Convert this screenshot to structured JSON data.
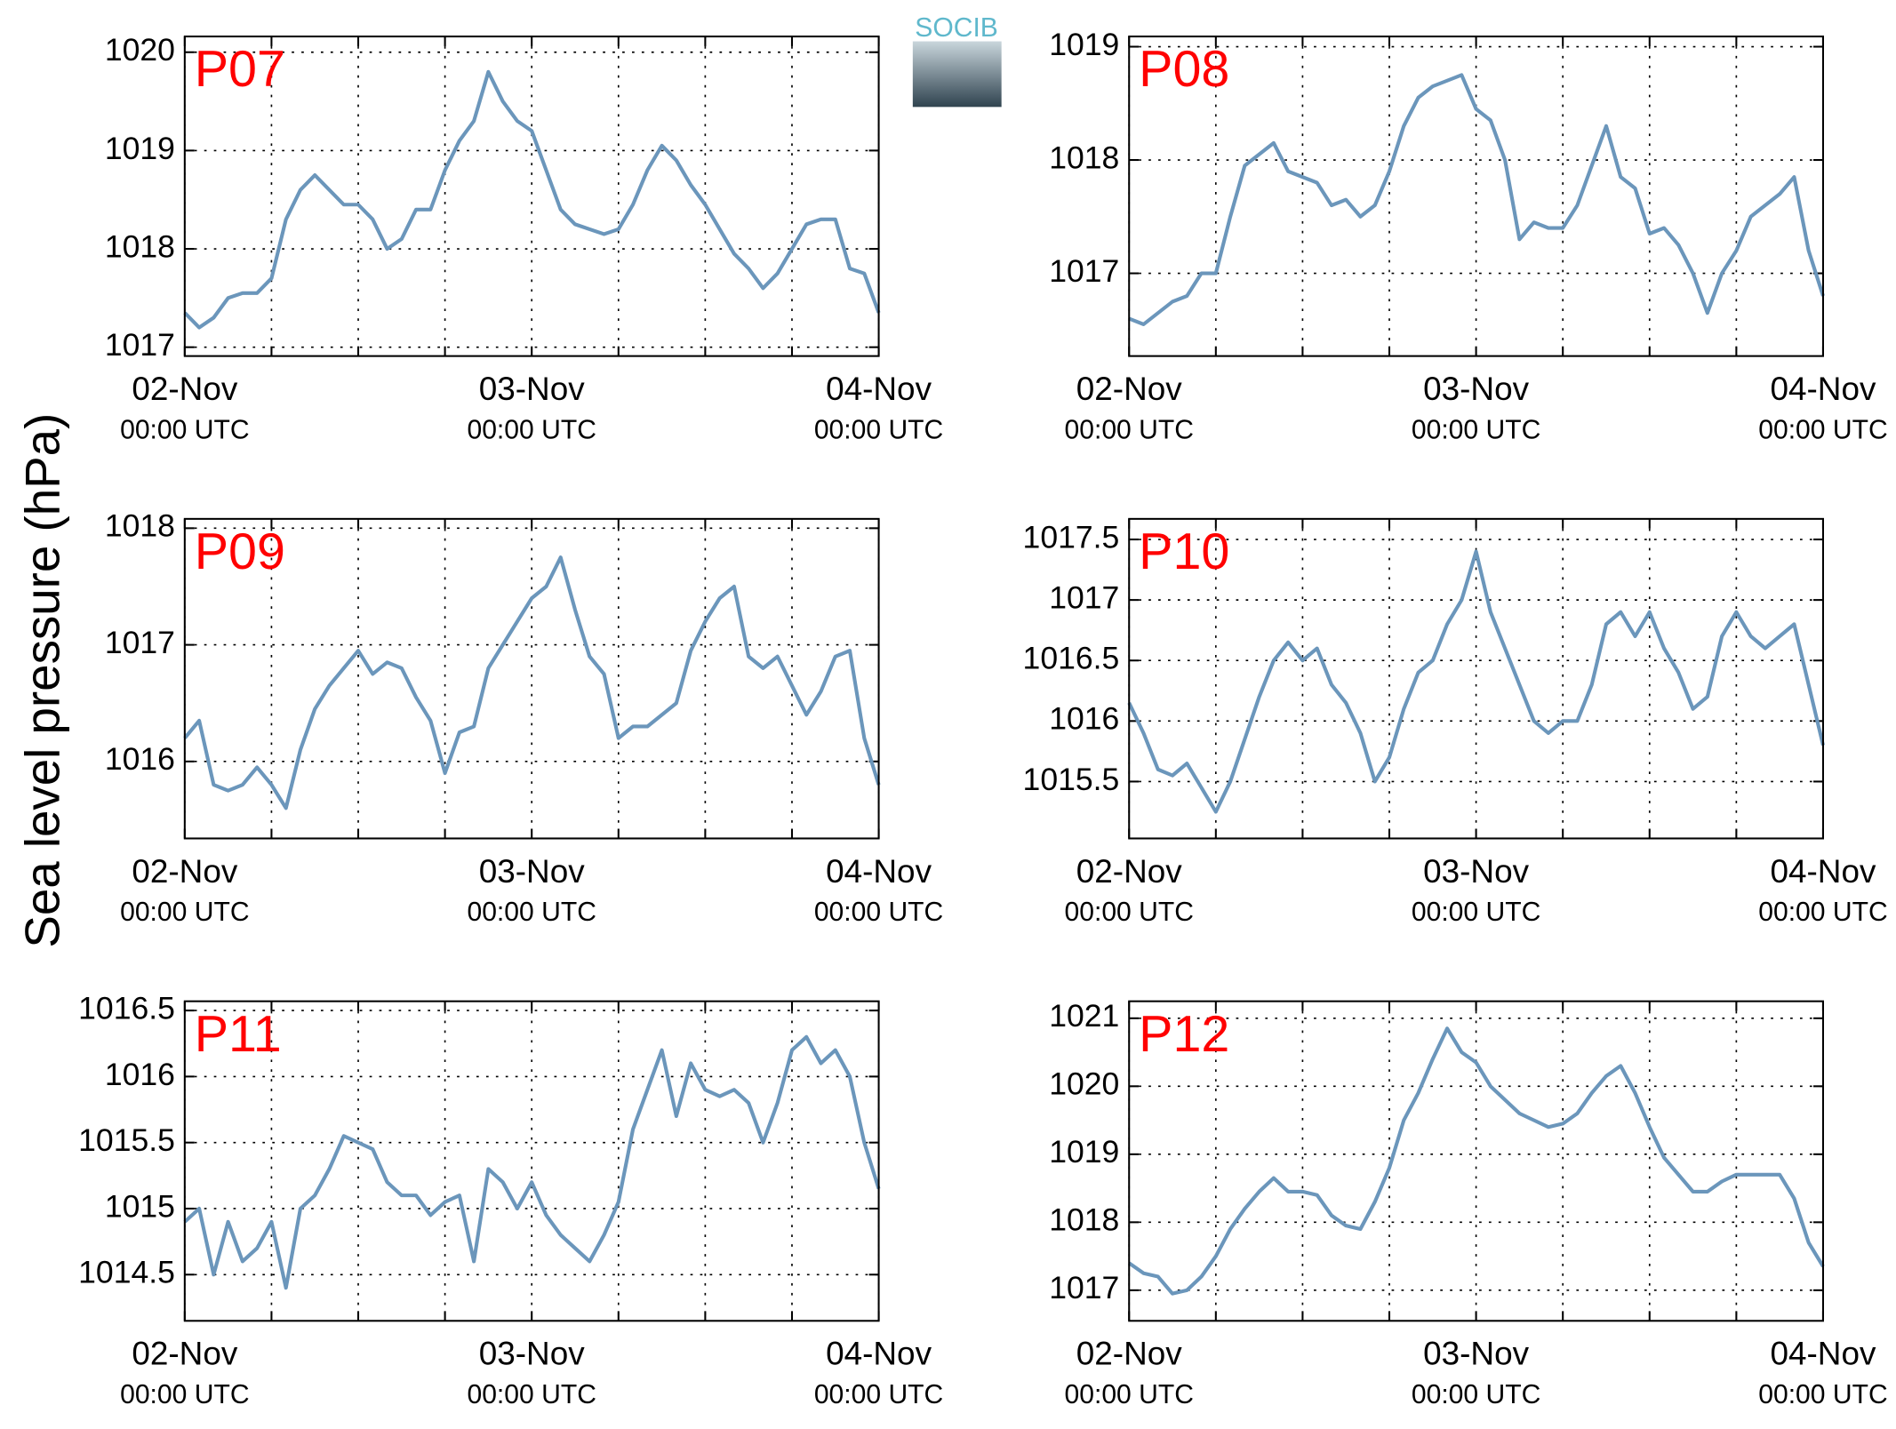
{
  "ylabel": "Sea level pressure (hPa)",
  "logo": "SOCIB",
  "chart_data": [
    {
      "type": "line",
      "title": "P07",
      "color": "#6b96bb",
      "ylim": [
        1016.91,
        1020.16
      ],
      "yticks": [
        1017,
        1018,
        1019,
        1020
      ],
      "grid": true,
      "x": [
        "02-Nov 00:00",
        "02-Nov 01:00",
        "02-Nov 02:00",
        "02-Nov 03:00",
        "02-Nov 04:00",
        "02-Nov 05:00",
        "02-Nov 06:00",
        "02-Nov 07:00",
        "02-Nov 08:00",
        "02-Nov 09:00",
        "02-Nov 10:00",
        "02-Nov 11:00",
        "02-Nov 12:00",
        "02-Nov 13:00",
        "02-Nov 14:00",
        "02-Nov 15:00",
        "02-Nov 16:00",
        "02-Nov 17:00",
        "02-Nov 18:00",
        "02-Nov 19:00",
        "02-Nov 20:00",
        "02-Nov 21:00",
        "02-Nov 22:00",
        "02-Nov 23:00",
        "03-Nov 00:00",
        "03-Nov 01:00",
        "03-Nov 02:00",
        "03-Nov 03:00",
        "03-Nov 04:00",
        "03-Nov 05:00",
        "03-Nov 06:00",
        "03-Nov 07:00",
        "03-Nov 08:00",
        "03-Nov 09:00",
        "03-Nov 10:00",
        "03-Nov 11:00",
        "03-Nov 12:00",
        "03-Nov 13:00",
        "03-Nov 14:00",
        "03-Nov 15:00",
        "03-Nov 16:00",
        "03-Nov 17:00",
        "03-Nov 18:00",
        "03-Nov 19:00",
        "03-Nov 20:00",
        "03-Nov 21:00",
        "03-Nov 22:00",
        "03-Nov 23:00",
        "04-Nov 00:00"
      ],
      "values": [
        1017.35,
        1017.2,
        1017.3,
        1017.5,
        1017.55,
        1017.55,
        1017.7,
        1018.3,
        1018.6,
        1018.75,
        1018.6,
        1018.45,
        1018.45,
        1018.3,
        1018.0,
        1018.1,
        1018.4,
        1018.4,
        1018.8,
        1019.1,
        1019.3,
        1019.8,
        1019.5,
        1019.3,
        1019.2,
        1018.8,
        1018.4,
        1018.25,
        1018.2,
        1018.15,
        1018.2,
        1018.45,
        1018.8,
        1019.05,
        1018.9,
        1018.65,
        1018.45,
        1018.2,
        1017.95,
        1017.8,
        1017.6,
        1017.75,
        1018.0,
        1018.25,
        1018.3,
        1018.3,
        1017.8,
        1017.75,
        1017.35
      ],
      "xticks": [
        {
          "value": "02-Nov 00:00",
          "label": [
            "02-Nov",
            "00:00 UTC"
          ]
        },
        {
          "value": "02-Nov 06:00"
        },
        {
          "value": "02-Nov 12:00"
        },
        {
          "value": "02-Nov 18:00"
        },
        {
          "value": "03-Nov 00:00",
          "label": [
            "03-Nov",
            "00:00 UTC"
          ]
        },
        {
          "value": "03-Nov 06:00"
        },
        {
          "value": "03-Nov 12:00"
        },
        {
          "value": "03-Nov 18:00"
        },
        {
          "value": "04-Nov 00:00",
          "label": [
            "04-Nov",
            "00:00 UTC"
          ]
        }
      ]
    },
    {
      "type": "line",
      "title": "P08",
      "color": "#6b96bb",
      "ylim": [
        1016.27,
        1019.09
      ],
      "yticks": [
        1017,
        1018,
        1019
      ],
      "grid": true,
      "x": [
        "02-Nov 00:00",
        "02-Nov 01:00",
        "02-Nov 02:00",
        "02-Nov 03:00",
        "02-Nov 04:00",
        "02-Nov 05:00",
        "02-Nov 06:00",
        "02-Nov 07:00",
        "02-Nov 08:00",
        "02-Nov 09:00",
        "02-Nov 10:00",
        "02-Nov 11:00",
        "02-Nov 12:00",
        "02-Nov 13:00",
        "02-Nov 14:00",
        "02-Nov 15:00",
        "02-Nov 16:00",
        "02-Nov 17:00",
        "02-Nov 18:00",
        "02-Nov 19:00",
        "02-Nov 20:00",
        "02-Nov 21:00",
        "02-Nov 22:00",
        "02-Nov 23:00",
        "03-Nov 00:00",
        "03-Nov 01:00",
        "03-Nov 02:00",
        "03-Nov 03:00",
        "03-Nov 04:00",
        "03-Nov 05:00",
        "03-Nov 06:00",
        "03-Nov 07:00",
        "03-Nov 08:00",
        "03-Nov 09:00",
        "03-Nov 10:00",
        "03-Nov 11:00",
        "03-Nov 12:00",
        "03-Nov 13:00",
        "03-Nov 14:00",
        "03-Nov 15:00",
        "03-Nov 16:00",
        "03-Nov 17:00",
        "03-Nov 18:00",
        "03-Nov 19:00",
        "03-Nov 20:00",
        "03-Nov 21:00",
        "03-Nov 22:00",
        "03-Nov 23:00",
        "04-Nov 00:00"
      ],
      "values": [
        1016.6,
        1016.55,
        1016.65,
        1016.75,
        1016.8,
        1017.0,
        1017.0,
        1017.5,
        1017.95,
        1018.05,
        1018.15,
        1017.9,
        1017.85,
        1017.8,
        1017.6,
        1017.65,
        1017.5,
        1017.6,
        1017.9,
        1018.3,
        1018.55,
        1018.65,
        1018.7,
        1018.75,
        1018.45,
        1018.35,
        1018.0,
        1017.3,
        1017.45,
        1017.4,
        1017.4,
        1017.6,
        1017.95,
        1018.3,
        1017.85,
        1017.75,
        1017.35,
        1017.4,
        1017.25,
        1017.0,
        1016.65,
        1017.0,
        1017.2,
        1017.5,
        1017.6,
        1017.7,
        1017.85,
        1017.2,
        1016.8
      ],
      "xticks": [
        {
          "value": "02-Nov 00:00",
          "label": [
            "02-Nov",
            "00:00 UTC"
          ]
        },
        {
          "value": "02-Nov 06:00"
        },
        {
          "value": "02-Nov 12:00"
        },
        {
          "value": "02-Nov 18:00"
        },
        {
          "value": "03-Nov 00:00",
          "label": [
            "03-Nov",
            "00:00 UTC"
          ]
        },
        {
          "value": "03-Nov 06:00"
        },
        {
          "value": "03-Nov 12:00"
        },
        {
          "value": "03-Nov 18:00"
        },
        {
          "value": "04-Nov 00:00",
          "label": [
            "04-Nov",
            "00:00 UTC"
          ]
        }
      ]
    },
    {
      "type": "line",
      "title": "P09",
      "color": "#6b96bb",
      "ylim": [
        1015.34,
        1018.08
      ],
      "yticks": [
        1016,
        1017,
        1018
      ],
      "grid": true,
      "x": [
        "02-Nov 00:00",
        "02-Nov 01:00",
        "02-Nov 02:00",
        "02-Nov 03:00",
        "02-Nov 04:00",
        "02-Nov 05:00",
        "02-Nov 06:00",
        "02-Nov 07:00",
        "02-Nov 08:00",
        "02-Nov 09:00",
        "02-Nov 10:00",
        "02-Nov 11:00",
        "02-Nov 12:00",
        "02-Nov 13:00",
        "02-Nov 14:00",
        "02-Nov 15:00",
        "02-Nov 16:00",
        "02-Nov 17:00",
        "02-Nov 18:00",
        "02-Nov 19:00",
        "02-Nov 20:00",
        "02-Nov 21:00",
        "02-Nov 22:00",
        "02-Nov 23:00",
        "03-Nov 00:00",
        "03-Nov 01:00",
        "03-Nov 02:00",
        "03-Nov 03:00",
        "03-Nov 04:00",
        "03-Nov 05:00",
        "03-Nov 06:00",
        "03-Nov 07:00",
        "03-Nov 08:00",
        "03-Nov 09:00",
        "03-Nov 10:00",
        "03-Nov 11:00",
        "03-Nov 12:00",
        "03-Nov 13:00",
        "03-Nov 14:00",
        "03-Nov 15:00",
        "03-Nov 16:00",
        "03-Nov 17:00",
        "03-Nov 18:00",
        "03-Nov 19:00",
        "03-Nov 20:00",
        "03-Nov 21:00",
        "03-Nov 22:00",
        "03-Nov 23:00",
        "04-Nov 00:00"
      ],
      "values": [
        1016.2,
        1016.35,
        1015.8,
        1015.75,
        1015.8,
        1015.95,
        1015.8,
        1015.6,
        1016.1,
        1016.45,
        1016.65,
        1016.8,
        1016.95,
        1016.75,
        1016.85,
        1016.8,
        1016.55,
        1016.35,
        1015.9,
        1016.25,
        1016.3,
        1016.8,
        1017.0,
        1017.2,
        1017.4,
        1017.5,
        1017.75,
        1017.3,
        1016.9,
        1016.75,
        1016.2,
        1016.3,
        1016.3,
        1016.4,
        1016.5,
        1016.95,
        1017.2,
        1017.4,
        1017.5,
        1016.9,
        1016.8,
        1016.9,
        1016.65,
        1016.4,
        1016.6,
        1016.9,
        1016.95,
        1016.2,
        1015.8
      ],
      "xticks": [
        {
          "value": "02-Nov 00:00",
          "label": [
            "02-Nov",
            "00:00 UTC"
          ]
        },
        {
          "value": "02-Nov 06:00"
        },
        {
          "value": "02-Nov 12:00"
        },
        {
          "value": "02-Nov 18:00"
        },
        {
          "value": "03-Nov 00:00",
          "label": [
            "03-Nov",
            "00:00 UTC"
          ]
        },
        {
          "value": "03-Nov 06:00"
        },
        {
          "value": "03-Nov 12:00"
        },
        {
          "value": "03-Nov 18:00"
        },
        {
          "value": "04-Nov 00:00",
          "label": [
            "04-Nov",
            "00:00 UTC"
          ]
        }
      ]
    },
    {
      "type": "line",
      "title": "P10",
      "color": "#6b96bb",
      "ylim": [
        1015.03,
        1017.67
      ],
      "yticks": [
        1015.5,
        1016,
        1016.5,
        1017,
        1017.5
      ],
      "grid": true,
      "x": [
        "02-Nov 00:00",
        "02-Nov 01:00",
        "02-Nov 02:00",
        "02-Nov 03:00",
        "02-Nov 04:00",
        "02-Nov 05:00",
        "02-Nov 06:00",
        "02-Nov 07:00",
        "02-Nov 08:00",
        "02-Nov 09:00",
        "02-Nov 10:00",
        "02-Nov 11:00",
        "02-Nov 12:00",
        "02-Nov 13:00",
        "02-Nov 14:00",
        "02-Nov 15:00",
        "02-Nov 16:00",
        "02-Nov 17:00",
        "02-Nov 18:00",
        "02-Nov 19:00",
        "02-Nov 20:00",
        "02-Nov 21:00",
        "02-Nov 22:00",
        "02-Nov 23:00",
        "03-Nov 00:00",
        "03-Nov 01:00",
        "03-Nov 02:00",
        "03-Nov 03:00",
        "03-Nov 04:00",
        "03-Nov 05:00",
        "03-Nov 06:00",
        "03-Nov 07:00",
        "03-Nov 08:00",
        "03-Nov 09:00",
        "03-Nov 10:00",
        "03-Nov 11:00",
        "03-Nov 12:00",
        "03-Nov 13:00",
        "03-Nov 14:00",
        "03-Nov 15:00",
        "03-Nov 16:00",
        "03-Nov 17:00",
        "03-Nov 18:00",
        "03-Nov 19:00",
        "03-Nov 20:00",
        "03-Nov 21:00",
        "03-Nov 22:00",
        "03-Nov 23:00",
        "04-Nov 00:00"
      ],
      "values": [
        1016.15,
        1015.9,
        1015.6,
        1015.55,
        1015.65,
        1015.45,
        1015.25,
        1015.5,
        1015.85,
        1016.2,
        1016.5,
        1016.65,
        1016.5,
        1016.6,
        1016.3,
        1016.15,
        1015.9,
        1015.5,
        1015.7,
        1016.1,
        1016.4,
        1016.5,
        1016.8,
        1017.0,
        1017.4,
        1016.9,
        1016.6,
        1016.3,
        1016.0,
        1015.9,
        1016.0,
        1016.0,
        1016.3,
        1016.8,
        1016.9,
        1016.7,
        1016.9,
        1016.6,
        1016.4,
        1016.1,
        1016.2,
        1016.7,
        1016.9,
        1016.7,
        1016.6,
        1016.7,
        1016.8,
        1016.3,
        1015.8
      ],
      "xticks": [
        {
          "value": "02-Nov 00:00",
          "label": [
            "02-Nov",
            "00:00 UTC"
          ]
        },
        {
          "value": "02-Nov 06:00"
        },
        {
          "value": "02-Nov 12:00"
        },
        {
          "value": "02-Nov 18:00"
        },
        {
          "value": "03-Nov 00:00",
          "label": [
            "03-Nov",
            "00:00 UTC"
          ]
        },
        {
          "value": "03-Nov 06:00"
        },
        {
          "value": "03-Nov 12:00"
        },
        {
          "value": "03-Nov 18:00"
        },
        {
          "value": "04-Nov 00:00",
          "label": [
            "04-Nov",
            "00:00 UTC"
          ]
        }
      ]
    },
    {
      "type": "line",
      "title": "P11",
      "color": "#6b96bb",
      "ylim": [
        1014.15,
        1016.57
      ],
      "yticks": [
        1014.5,
        1015,
        1015.5,
        1016,
        1016.5
      ],
      "grid": true,
      "x": [
        "02-Nov 00:00",
        "02-Nov 01:00",
        "02-Nov 02:00",
        "02-Nov 03:00",
        "02-Nov 04:00",
        "02-Nov 05:00",
        "02-Nov 06:00",
        "02-Nov 07:00",
        "02-Nov 08:00",
        "02-Nov 09:00",
        "02-Nov 10:00",
        "02-Nov 11:00",
        "02-Nov 12:00",
        "02-Nov 13:00",
        "02-Nov 14:00",
        "02-Nov 15:00",
        "02-Nov 16:00",
        "02-Nov 17:00",
        "02-Nov 18:00",
        "02-Nov 19:00",
        "02-Nov 20:00",
        "02-Nov 21:00",
        "02-Nov 22:00",
        "02-Nov 23:00",
        "03-Nov 00:00",
        "03-Nov 01:00",
        "03-Nov 02:00",
        "03-Nov 03:00",
        "03-Nov 04:00",
        "03-Nov 05:00",
        "03-Nov 06:00",
        "03-Nov 07:00",
        "03-Nov 08:00",
        "03-Nov 09:00",
        "03-Nov 10:00",
        "03-Nov 11:00",
        "03-Nov 12:00",
        "03-Nov 13:00",
        "03-Nov 14:00",
        "03-Nov 15:00",
        "03-Nov 16:00",
        "03-Nov 17:00",
        "03-Nov 18:00",
        "03-Nov 19:00",
        "03-Nov 20:00",
        "03-Nov 21:00",
        "03-Nov 22:00",
        "03-Nov 23:00",
        "04-Nov 00:00"
      ],
      "values": [
        1014.9,
        1015.0,
        1014.5,
        1014.9,
        1014.6,
        1014.7,
        1014.9,
        1014.4,
        1015.0,
        1015.1,
        1015.3,
        1015.55,
        1015.5,
        1015.45,
        1015.2,
        1015.1,
        1015.1,
        1014.95,
        1015.05,
        1015.1,
        1014.6,
        1015.3,
        1015.2,
        1015.0,
        1015.2,
        1014.95,
        1014.8,
        1014.7,
        1014.6,
        1014.8,
        1015.05,
        1015.6,
        1015.9,
        1016.2,
        1015.7,
        1016.1,
        1015.9,
        1015.85,
        1015.9,
        1015.8,
        1015.5,
        1015.8,
        1016.2,
        1016.3,
        1016.1,
        1016.2,
        1016.0,
        1015.5,
        1015.15
      ],
      "xticks": [
        {
          "value": "02-Nov 00:00",
          "label": [
            "02-Nov",
            "00:00 UTC"
          ]
        },
        {
          "value": "02-Nov 06:00"
        },
        {
          "value": "02-Nov 12:00"
        },
        {
          "value": "02-Nov 18:00"
        },
        {
          "value": "03-Nov 00:00",
          "label": [
            "03-Nov",
            "00:00 UTC"
          ]
        },
        {
          "value": "03-Nov 06:00"
        },
        {
          "value": "03-Nov 12:00"
        },
        {
          "value": "03-Nov 18:00"
        },
        {
          "value": "04-Nov 00:00",
          "label": [
            "04-Nov",
            "00:00 UTC"
          ]
        }
      ]
    },
    {
      "type": "line",
      "title": "P12",
      "color": "#6b96bb",
      "ylim": [
        1016.55,
        1021.25
      ],
      "yticks": [
        1017,
        1018,
        1019,
        1020,
        1021
      ],
      "grid": true,
      "x": [
        "02-Nov 00:00",
        "02-Nov 01:00",
        "02-Nov 02:00",
        "02-Nov 03:00",
        "02-Nov 04:00",
        "02-Nov 05:00",
        "02-Nov 06:00",
        "02-Nov 07:00",
        "02-Nov 08:00",
        "02-Nov 09:00",
        "02-Nov 10:00",
        "02-Nov 11:00",
        "02-Nov 12:00",
        "02-Nov 13:00",
        "02-Nov 14:00",
        "02-Nov 15:00",
        "02-Nov 16:00",
        "02-Nov 17:00",
        "02-Nov 18:00",
        "02-Nov 19:00",
        "02-Nov 20:00",
        "02-Nov 21:00",
        "02-Nov 22:00",
        "02-Nov 23:00",
        "03-Nov 00:00",
        "03-Nov 01:00",
        "03-Nov 02:00",
        "03-Nov 03:00",
        "03-Nov 04:00",
        "03-Nov 05:00",
        "03-Nov 06:00",
        "03-Nov 07:00",
        "03-Nov 08:00",
        "03-Nov 09:00",
        "03-Nov 10:00",
        "03-Nov 11:00",
        "03-Nov 12:00",
        "03-Nov 13:00",
        "03-Nov 14:00",
        "03-Nov 15:00",
        "03-Nov 16:00",
        "03-Nov 17:00",
        "03-Nov 18:00",
        "03-Nov 19:00",
        "03-Nov 20:00",
        "03-Nov 21:00",
        "03-Nov 22:00",
        "03-Nov 23:00",
        "04-Nov 00:00"
      ],
      "values": [
        1017.4,
        1017.25,
        1017.2,
        1016.95,
        1017.0,
        1017.2,
        1017.5,
        1017.9,
        1018.2,
        1018.45,
        1018.65,
        1018.45,
        1018.45,
        1018.4,
        1018.1,
        1017.95,
        1017.9,
        1018.3,
        1018.8,
        1019.5,
        1019.9,
        1020.4,
        1020.85,
        1020.5,
        1020.35,
        1020.0,
        1019.8,
        1019.6,
        1019.5,
        1019.4,
        1019.45,
        1019.6,
        1019.9,
        1020.15,
        1020.3,
        1019.9,
        1019.4,
        1018.95,
        1018.7,
        1018.45,
        1018.45,
        1018.6,
        1018.7,
        1018.7,
        1018.7,
        1018.7,
        1018.35,
        1017.7,
        1017.35
      ],
      "xticks": [
        {
          "value": "02-Nov 00:00",
          "label": [
            "02-Nov",
            "00:00 UTC"
          ]
        },
        {
          "value": "02-Nov 06:00"
        },
        {
          "value": "02-Nov 12:00"
        },
        {
          "value": "02-Nov 18:00"
        },
        {
          "value": "03-Nov 00:00",
          "label": [
            "03-Nov",
            "00:00 UTC"
          ]
        },
        {
          "value": "03-Nov 06:00"
        },
        {
          "value": "03-Nov 12:00"
        },
        {
          "value": "03-Nov 18:00"
        },
        {
          "value": "04-Nov 00:00",
          "label": [
            "04-Nov",
            "00:00 UTC"
          ]
        }
      ]
    }
  ]
}
